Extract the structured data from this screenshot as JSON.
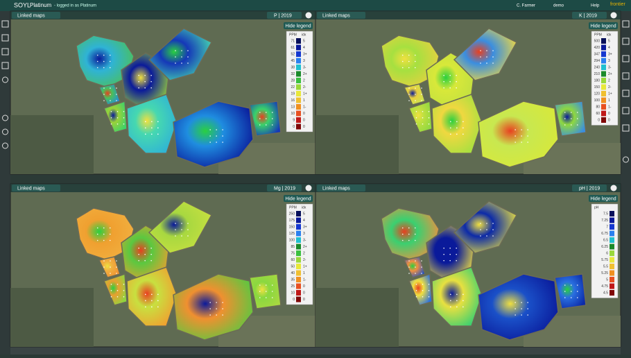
{
  "header": {
    "brand": "SOYL",
    "product": "Platinum",
    "login": "- logged in as Platinum",
    "user": "C. Farmer",
    "account": "demo",
    "help": "Help",
    "partner": "frontier"
  },
  "panels": [
    {
      "linked": "Linked maps",
      "layer": "P | 2019",
      "hide_legend": "Hide legend",
      "legend": {
        "units": [
          "PPM",
          "idx"
        ],
        "rows": [
          [
            "71",
            "5"
          ],
          [
            "61",
            "4"
          ],
          [
            "52",
            "3+"
          ],
          [
            "45",
            "3"
          ],
          [
            "38",
            "3-"
          ],
          [
            "32",
            "2+"
          ],
          [
            "28",
            "2"
          ],
          [
            "22",
            "2-"
          ],
          [
            "19",
            "1+"
          ],
          [
            "16",
            "1"
          ],
          [
            "13",
            "1-"
          ],
          [
            "10",
            "0"
          ],
          [
            "9",
            "0"
          ],
          [
            "0",
            "0"
          ]
        ]
      }
    },
    {
      "linked": "Linked maps",
      "layer": "K | 2019",
      "hide_legend": "Hide legend",
      "legend": {
        "units": [
          "PPM",
          "idx"
        ],
        "rows": [
          [
            "500",
            "5"
          ],
          [
            "420",
            "4"
          ],
          [
            "347",
            "3+"
          ],
          [
            "294",
            "3"
          ],
          [
            "240",
            "3-"
          ],
          [
            "210",
            "2+"
          ],
          [
            "180",
            "2"
          ],
          [
            "150",
            "2-"
          ],
          [
            "120",
            "1+"
          ],
          [
            "100",
            "1"
          ],
          [
            "80",
            "1-"
          ],
          [
            "60",
            "0"
          ],
          [
            "0",
            "0"
          ]
        ]
      }
    },
    {
      "linked": "Linked maps",
      "layer": "Mg | 2019",
      "hide_legend": "Hide legend",
      "legend": {
        "units": [
          "PPM",
          "idx"
        ],
        "rows": [
          [
            "250",
            "5"
          ],
          [
            "175",
            "4"
          ],
          [
            "150",
            "3+"
          ],
          [
            "125",
            "3"
          ],
          [
            "100",
            "3-"
          ],
          [
            "85",
            "2+"
          ],
          [
            "75",
            "2"
          ],
          [
            "60",
            "2-"
          ],
          [
            "50",
            "1+"
          ],
          [
            "40",
            "1"
          ],
          [
            "35",
            "1-"
          ],
          [
            "25",
            "0"
          ],
          [
            "10",
            "0"
          ],
          [
            "0",
            "0"
          ]
        ]
      }
    },
    {
      "linked": "Linked maps",
      "layer": "pH | 2019",
      "hide_legend": "Hide legend",
      "legend": {
        "units": [
          "pH"
        ],
        "rows": [
          [
            "7.5"
          ],
          [
            "7.25"
          ],
          [
            "7"
          ],
          [
            "6.75"
          ],
          [
            "6.5"
          ],
          [
            "6.25"
          ],
          [
            "6"
          ],
          [
            "5.75"
          ],
          [
            "5.5"
          ],
          [
            "5.25"
          ],
          [
            "5"
          ],
          [
            "4.75"
          ],
          [
            "4.5"
          ]
        ]
      }
    }
  ]
}
